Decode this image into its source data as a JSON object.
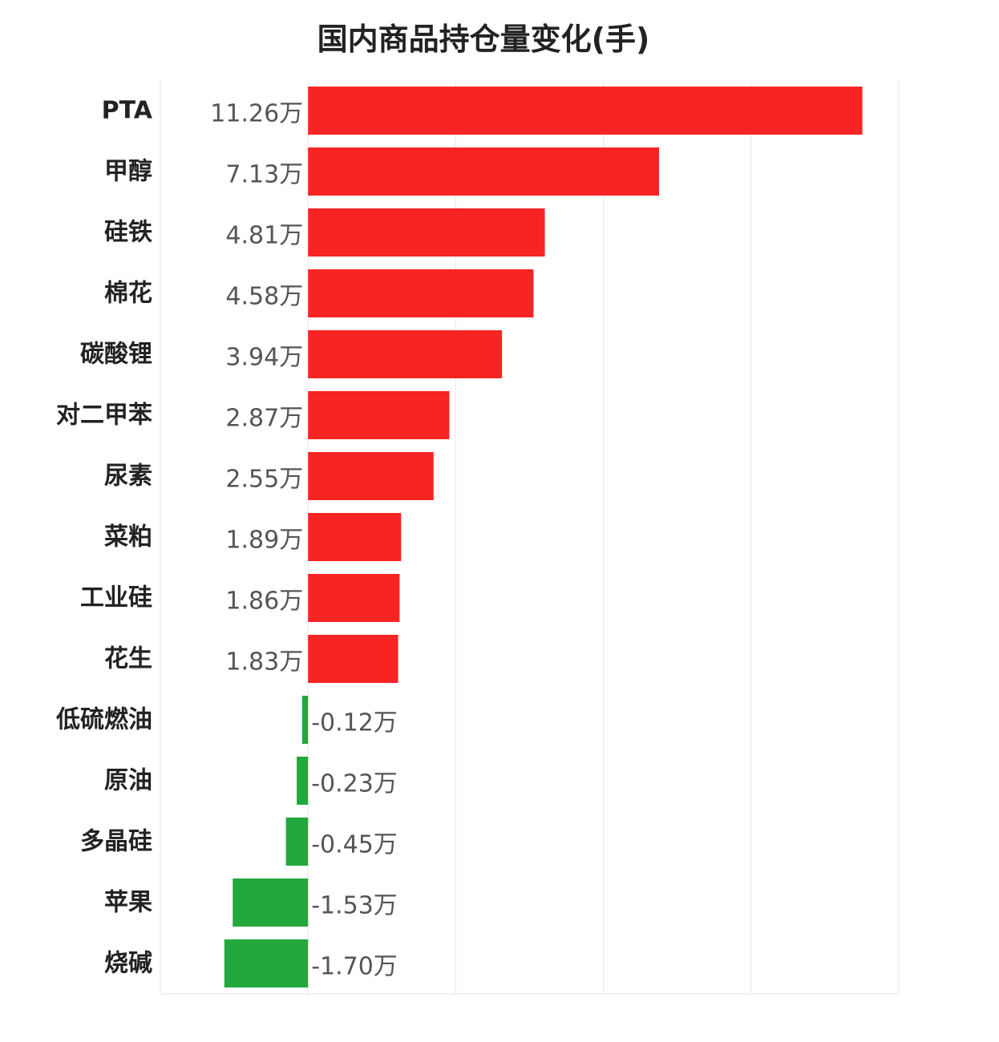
{
  "chart_data": {
    "type": "bar",
    "orientation": "horizontal",
    "title": "国内商品持仓量变化(手)",
    "categories": [
      "PTA",
      "甲醇",
      "硅铁",
      "棉花",
      "碳酸锂",
      "对二甲苯",
      "尿素",
      "菜粕",
      "工业硅",
      "花生",
      "低硫燃油",
      "原油",
      "多晶硅",
      "苹果",
      "烧碱"
    ],
    "values": [
      11.26,
      7.13,
      4.81,
      4.58,
      3.94,
      2.87,
      2.55,
      1.89,
      1.86,
      1.83,
      -0.12,
      -0.23,
      -0.45,
      -1.53,
      -1.7
    ],
    "value_labels": [
      "11.26万",
      "7.13万",
      "4.81万",
      "4.58万",
      "3.94万",
      "2.87万",
      "2.55万",
      "1.89万",
      "1.86万",
      "1.83万",
      "-0.12万",
      "-0.23万",
      "-0.45万",
      "-1.53万",
      "-1.70万"
    ],
    "unit": "万",
    "xlim": [
      -3,
      12
    ],
    "gridlines": [
      -3,
      0,
      3,
      6,
      9,
      12
    ],
    "grid": true,
    "colors": {
      "positive": "#f72424",
      "negative": "#22a83c",
      "grid": "#e6e6e6",
      "category_text": "#222222",
      "value_text": "#555555"
    }
  }
}
